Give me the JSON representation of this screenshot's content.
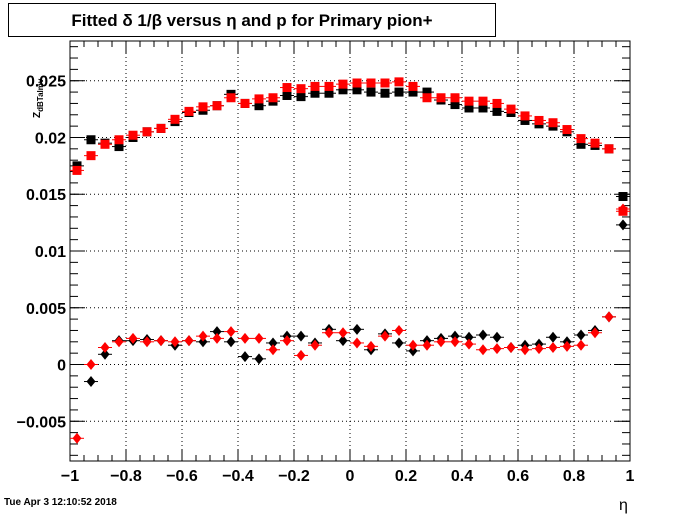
{
  "title": "Fitted δ 1/β versus η and p for Primary pion+",
  "footer_date": "Tue Apr  3 12:10:52 2018",
  "chart_data": {
    "type": "scatter",
    "title": "Fitted δ 1/β versus η and p for Primary pion+",
    "xlabel": "η",
    "ylabel": "Z_dBTalmv",
    "xlim": [
      -1,
      1
    ],
    "ylim": [
      -0.0085,
      0.0285
    ],
    "grid": true,
    "x_ticks": [
      "−1",
      "−0.8",
      "−0.6",
      "−0.4",
      "−0.2",
      "0",
      "0.2",
      "0.4",
      "0.6",
      "0.8",
      "1"
    ],
    "x_tick_values": [
      -1,
      -0.8,
      -0.6,
      -0.4,
      -0.2,
      0,
      0.2,
      0.4,
      0.6,
      0.8,
      1
    ],
    "y_ticks": [
      "−0.005",
      "0",
      "0.005",
      "0.01",
      "0.015",
      "0.02",
      "0.025"
    ],
    "y_tick_values": [
      -0.005,
      0,
      0.005,
      0.01,
      0.015,
      0.02,
      0.025
    ],
    "series": [
      {
        "marker": "square",
        "color": "#000000",
        "x": [
          -0.975,
          -0.925,
          -0.875,
          -0.825,
          -0.775,
          -0.725,
          -0.675,
          -0.625,
          -0.575,
          -0.525,
          -0.475,
          -0.425,
          -0.375,
          -0.325,
          -0.275,
          -0.225,
          -0.175,
          -0.125,
          -0.075,
          -0.025,
          0.025,
          0.075,
          0.125,
          0.175,
          0.225,
          0.275,
          0.325,
          0.375,
          0.425,
          0.475,
          0.525,
          0.575,
          0.625,
          0.675,
          0.725,
          0.775,
          0.825,
          0.875,
          0.925,
          0.975
        ],
        "y": [
          0.0175,
          0.0198,
          0.0195,
          0.0192,
          0.02,
          0.0205,
          0.0208,
          0.0214,
          0.0222,
          0.0224,
          0.0228,
          0.0238,
          0.023,
          0.0228,
          0.0232,
          0.0237,
          0.0236,
          0.0239,
          0.0239,
          0.0242,
          0.0242,
          0.024,
          0.0239,
          0.024,
          0.024,
          0.024,
          0.0233,
          0.0229,
          0.0226,
          0.0226,
          0.0223,
          0.0222,
          0.0215,
          0.0212,
          0.021,
          0.0205,
          0.0194,
          0.0193,
          0.019,
          0.0148
        ]
      },
      {
        "marker": "square",
        "color": "#ff0000",
        "x": [
          -0.975,
          -0.925,
          -0.875,
          -0.825,
          -0.775,
          -0.725,
          -0.675,
          -0.625,
          -0.575,
          -0.525,
          -0.475,
          -0.425,
          -0.375,
          -0.325,
          -0.275,
          -0.225,
          -0.175,
          -0.125,
          -0.075,
          -0.025,
          0.025,
          0.075,
          0.125,
          0.175,
          0.225,
          0.275,
          0.325,
          0.375,
          0.425,
          0.475,
          0.525,
          0.575,
          0.625,
          0.675,
          0.725,
          0.775,
          0.825,
          0.875,
          0.925,
          0.975
        ],
        "y": [
          0.0171,
          0.0184,
          0.0194,
          0.0198,
          0.0202,
          0.0205,
          0.0208,
          0.0216,
          0.0223,
          0.0227,
          0.0228,
          0.0235,
          0.023,
          0.0234,
          0.0235,
          0.0244,
          0.0243,
          0.0245,
          0.0245,
          0.0247,
          0.0248,
          0.0248,
          0.0248,
          0.0249,
          0.0245,
          0.0235,
          0.0235,
          0.0235,
          0.0232,
          0.0232,
          0.023,
          0.0225,
          0.0219,
          0.0215,
          0.0213,
          0.0207,
          0.0199,
          0.0195,
          0.019,
          0.0135
        ]
      },
      {
        "marker": "diamond",
        "color": "#000000",
        "x": [
          -0.925,
          -0.875,
          -0.825,
          -0.775,
          -0.725,
          -0.675,
          -0.625,
          -0.575,
          -0.525,
          -0.475,
          -0.425,
          -0.375,
          -0.325,
          -0.275,
          -0.225,
          -0.175,
          -0.125,
          -0.075,
          -0.025,
          0.025,
          0.075,
          0.125,
          0.175,
          0.225,
          0.275,
          0.325,
          0.375,
          0.425,
          0.475,
          0.525,
          0.575,
          0.625,
          0.675,
          0.725,
          0.775,
          0.825,
          0.875,
          0.925,
          0.975
        ],
        "y": [
          -0.0015,
          0.0009,
          0.0021,
          0.0021,
          0.0022,
          0.0021,
          0.0017,
          0.0021,
          0.002,
          0.0029,
          0.002,
          0.0007,
          0.0005,
          0.0019,
          0.0025,
          0.0025,
          0.0019,
          0.0031,
          0.0021,
          0.0031,
          0.0013,
          0.0027,
          0.0019,
          0.0012,
          0.0021,
          0.0023,
          0.0025,
          0.0024,
          0.0026,
          0.0024,
          0.0015,
          0.0017,
          0.0018,
          0.0024,
          0.002,
          0.0026,
          0.003,
          0.0042,
          0.0123
        ]
      },
      {
        "marker": "diamond",
        "color": "#ff0000",
        "x": [
          -0.975,
          -0.925,
          -0.875,
          -0.825,
          -0.775,
          -0.725,
          -0.675,
          -0.625,
          -0.575,
          -0.525,
          -0.475,
          -0.425,
          -0.375,
          -0.325,
          -0.275,
          -0.225,
          -0.175,
          -0.125,
          -0.075,
          -0.025,
          0.025,
          0.075,
          0.125,
          0.175,
          0.225,
          0.275,
          0.325,
          0.375,
          0.425,
          0.475,
          0.525,
          0.575,
          0.625,
          0.675,
          0.725,
          0.775,
          0.825,
          0.875,
          0.925,
          0.975
        ],
        "y": [
          -0.0065,
          0.0,
          0.0015,
          0.002,
          0.0023,
          0.002,
          0.0021,
          0.002,
          0.0021,
          0.0025,
          0.0023,
          0.0029,
          0.0023,
          0.0023,
          0.0013,
          0.0021,
          0.0008,
          0.0017,
          0.0028,
          0.0028,
          0.0019,
          0.0016,
          0.0025,
          0.003,
          0.0017,
          0.0017,
          0.002,
          0.002,
          0.0018,
          0.0013,
          0.0014,
          0.0015,
          0.0013,
          0.0014,
          0.0015,
          0.0016,
          0.0017,
          0.0028,
          0.0042,
          0.0137
        ]
      }
    ]
  }
}
